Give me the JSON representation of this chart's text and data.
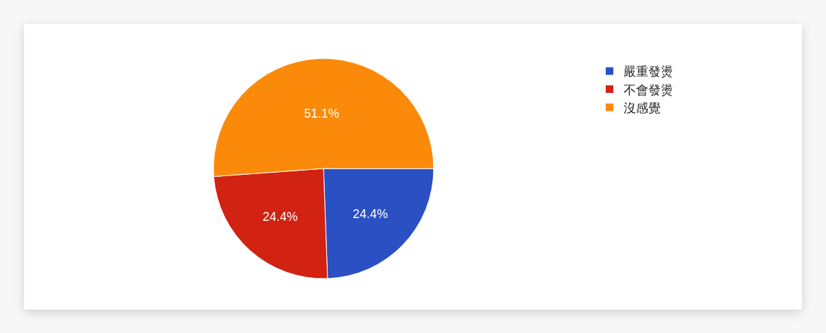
{
  "chart_data": {
    "type": "pie",
    "categories": [
      "嚴重發燙",
      "不會發燙",
      "沒感覺"
    ],
    "values": [
      24.4,
      24.4,
      51.1
    ],
    "colors": [
      "#2b50c3",
      "#d12212",
      "#fb8a0a"
    ],
    "value_labels": [
      "24.4%",
      "24.4%",
      "51.1%"
    ],
    "legend": "top right"
  }
}
